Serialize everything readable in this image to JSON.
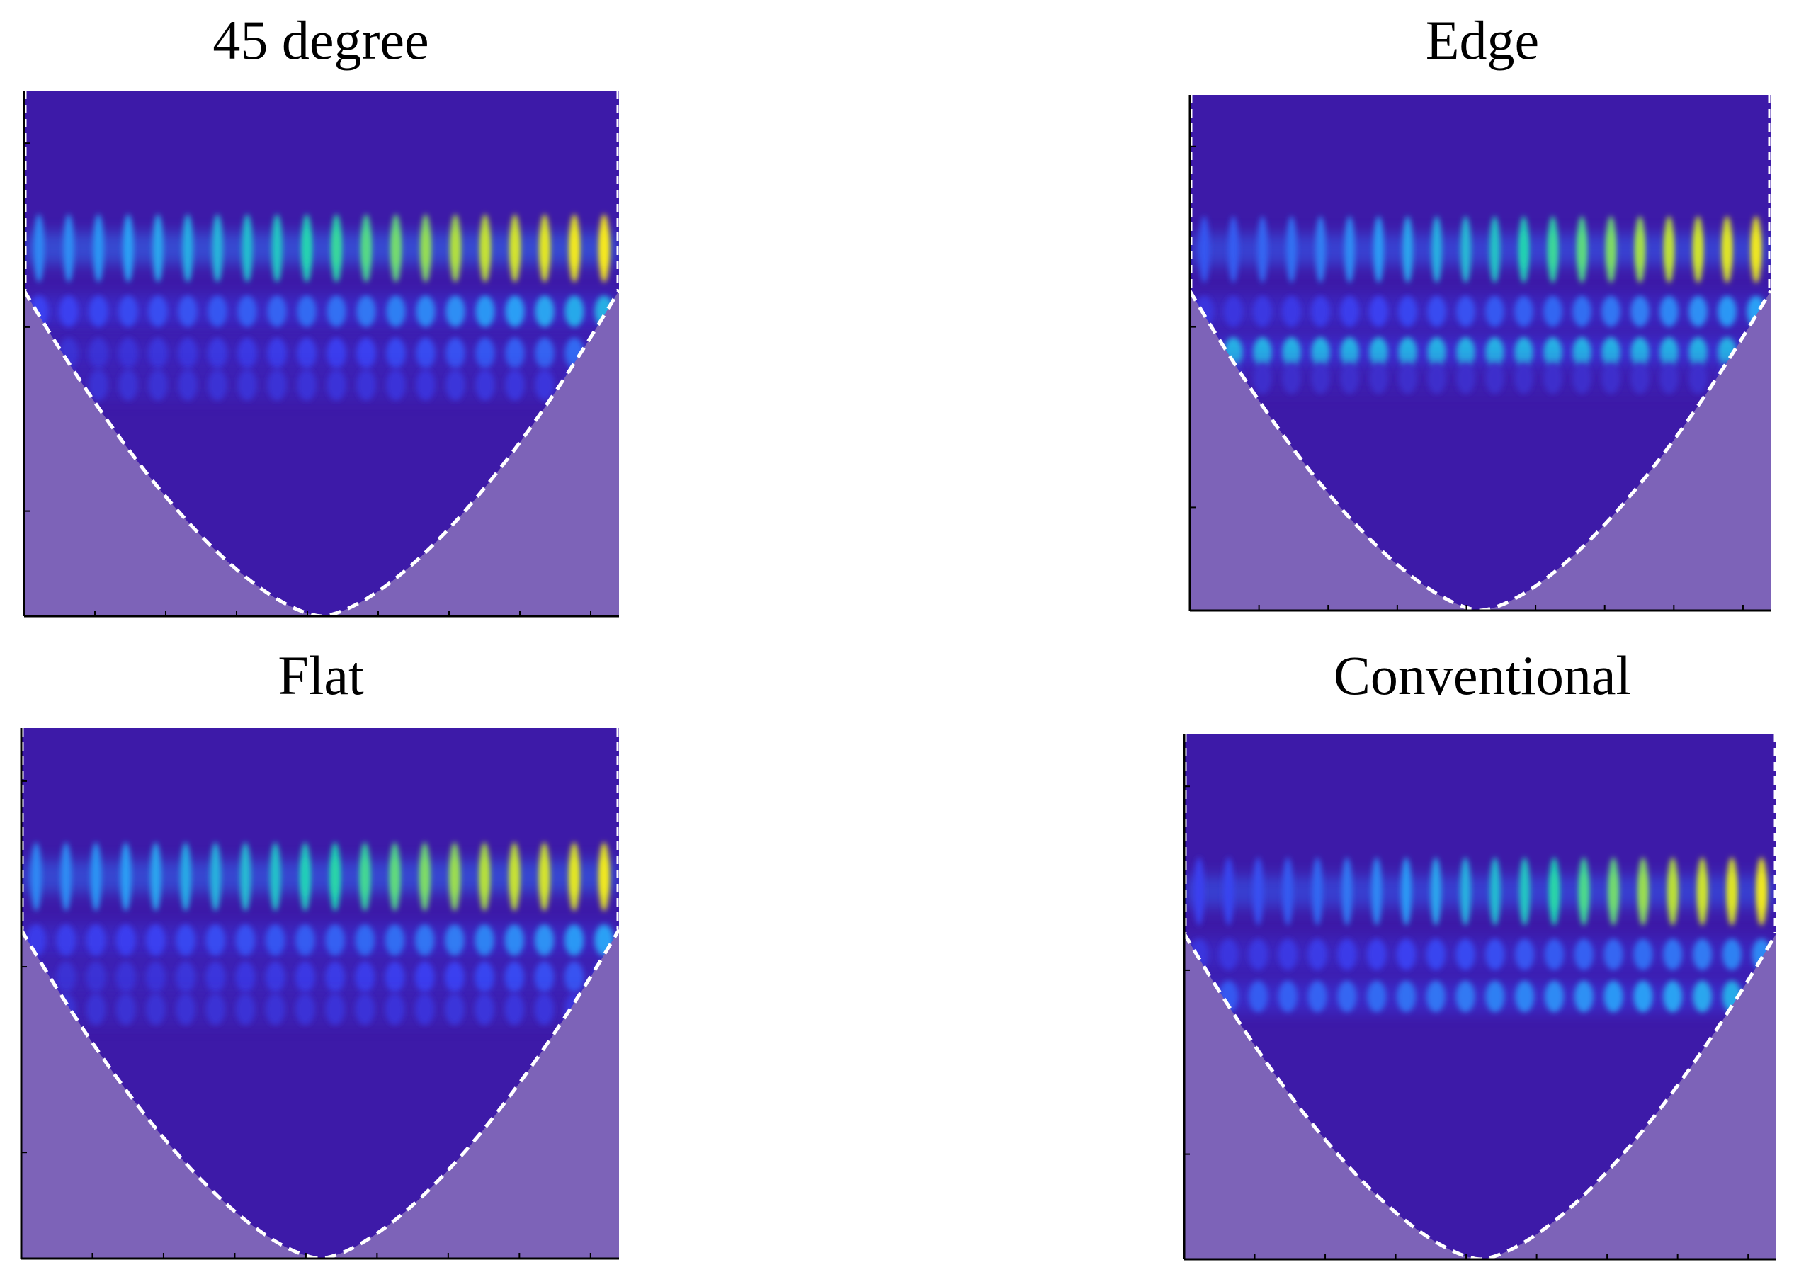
{
  "figure": {
    "colors": {
      "background_field": "#3d1aa8",
      "cone_shade": "#7d63b8",
      "coi_line": "#ffffff",
      "axis": "#000000",
      "colormap": [
        "#3d1aa8",
        "#3a3ff0",
        "#2aa0f5",
        "#1fd6b0",
        "#b8e03a",
        "#f8ea1a"
      ]
    }
  },
  "chart_data": [
    {
      "type": "heatmap",
      "title": "45 degree",
      "xlabel": "",
      "ylabel": "",
      "colormap": "parula",
      "x_ticks": 8,
      "y_ticks": 3,
      "cone_of_influence": "dashed",
      "pulse_count": 20,
      "bands": [
        {
          "depth": 0.3,
          "intensity_start": 0.35,
          "intensity_end": 1.0
        },
        {
          "depth": 0.42,
          "intensity_start": 0.2,
          "intensity_end": 0.45
        },
        {
          "depth": 0.5,
          "intensity_start": 0.12,
          "intensity_end": 0.3
        },
        {
          "depth": 0.56,
          "intensity_start": 0.12,
          "intensity_end": 0.15
        }
      ]
    },
    {
      "type": "heatmap",
      "title": "Edge",
      "xlabel": "",
      "ylabel": "",
      "colormap": "parula",
      "x_ticks": 8,
      "y_ticks": 3,
      "cone_of_influence": "dashed",
      "pulse_count": 20,
      "bands": [
        {
          "depth": 0.3,
          "intensity_start": 0.25,
          "intensity_end": 0.95
        },
        {
          "depth": 0.42,
          "intensity_start": 0.15,
          "intensity_end": 0.4
        },
        {
          "depth": 0.5,
          "intensity_start": 0.45,
          "intensity_end": 0.45
        },
        {
          "depth": 0.55,
          "intensity_start": 0.1,
          "intensity_end": 0.1
        }
      ]
    },
    {
      "type": "heatmap",
      "title": "Flat",
      "xlabel": "",
      "ylabel": "",
      "colormap": "parula",
      "x_ticks": 8,
      "y_ticks": 3,
      "cone_of_influence": "dashed",
      "pulse_count": 20,
      "bands": [
        {
          "depth": 0.28,
          "intensity_start": 0.35,
          "intensity_end": 0.95
        },
        {
          "depth": 0.4,
          "intensity_start": 0.18,
          "intensity_end": 0.4
        },
        {
          "depth": 0.47,
          "intensity_start": 0.12,
          "intensity_end": 0.25
        },
        {
          "depth": 0.53,
          "intensity_start": 0.12,
          "intensity_end": 0.15
        }
      ]
    },
    {
      "type": "heatmap",
      "title": "Conventional",
      "xlabel": "",
      "ylabel": "",
      "colormap": "parula",
      "x_ticks": 8,
      "y_ticks": 3,
      "cone_of_influence": "dashed",
      "pulse_count": 20,
      "bands": [
        {
          "depth": 0.3,
          "intensity_start": 0.2,
          "intensity_end": 0.95
        },
        {
          "depth": 0.42,
          "intensity_start": 0.15,
          "intensity_end": 0.35
        },
        {
          "depth": 0.5,
          "intensity_start": 0.25,
          "intensity_end": 0.45
        }
      ]
    }
  ]
}
